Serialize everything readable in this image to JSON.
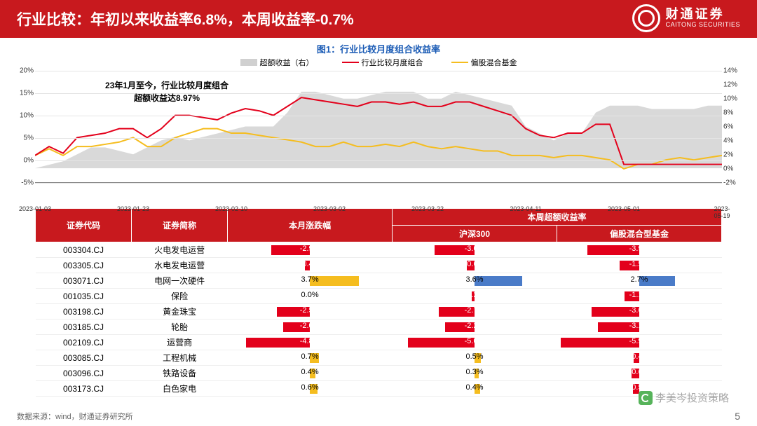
{
  "header": {
    "title": "行业比较：年初以来收益率6.8%，本周收益率-0.7%",
    "brand_main": "财通证券",
    "brand_sub": "CAITONG SECURITIES"
  },
  "chart": {
    "title": "图1：行业比较月度组合收益率",
    "legend_area": "超额收益（右）",
    "legend_line1": "行业比较月度组合",
    "legend_line2": "偏股混合基金",
    "annot_line1": "23年1月至今，行业比较月度组合",
    "annot_line2": "超额收益达8.97%",
    "colors": {
      "area": "#d0d0d0",
      "line1": "#e3001b",
      "line2": "#f5bd1f",
      "grid": "#e5e5e5"
    },
    "y_left": {
      "min": -5,
      "max": 20,
      "ticks": [
        -5,
        0,
        5,
        10,
        15,
        20
      ]
    },
    "y_right": {
      "min": -2,
      "max": 14,
      "ticks": [
        -2,
        0,
        2,
        4,
        6,
        8,
        10,
        12,
        14
      ]
    },
    "x_labels": [
      "2023-01-03",
      "2023-01-23",
      "2023-02-10",
      "2023-03-02",
      "2023-03-22",
      "2023-04-11",
      "2023-05-01",
      "2023-05-19"
    ],
    "series_area_r": [
      0,
      0.5,
      1,
      2,
      3,
      3,
      2.5,
      2,
      3,
      4,
      4.5,
      4,
      4.5,
      5,
      5.5,
      6,
      6,
      6,
      8,
      11,
      11,
      10.5,
      10,
      10,
      10.5,
      11,
      11,
      11,
      10,
      10,
      11,
      10.5,
      10,
      9.5,
      9,
      6,
      5,
      4,
      5,
      5,
      8,
      9,
      9,
      9,
      8.5,
      8.5,
      8.5,
      8.5,
      9,
      9
    ],
    "series_line1_l": [
      1,
      3,
      1.5,
      5,
      5.5,
      6,
      7,
      7,
      5,
      7,
      10,
      10,
      9.5,
      9,
      10.5,
      11.5,
      11,
      10,
      12,
      14,
      13.5,
      13,
      12.5,
      12,
      13,
      13,
      12.5,
      13,
      12,
      12,
      13,
      13,
      12,
      11,
      10,
      7,
      5.5,
      5,
      6,
      6,
      8,
      8,
      -1,
      -1,
      -1,
      -1,
      -1,
      -1,
      -1,
      -1
    ],
    "series_line2_l": [
      1,
      2.5,
      1,
      3,
      3,
      3.5,
      4,
      5,
      3,
      3,
      5,
      6,
      7,
      7,
      6,
      6,
      5.5,
      5,
      4.5,
      4,
      3,
      3,
      4,
      3,
      3,
      3.5,
      3,
      4,
      3,
      2.5,
      3,
      2.5,
      2,
      2,
      1,
      1,
      1,
      0.5,
      1,
      1,
      0.5,
      0,
      -2,
      -1,
      -1,
      0,
      0.5,
      0,
      0.5,
      1
    ]
  },
  "table": {
    "headers": {
      "code": "证券代码",
      "name": "证券简称",
      "month": "本月涨跌幅",
      "week_group": "本周超额收益率",
      "hs300": "沪深300",
      "fund": "偏股混合型基金"
    },
    "bar_range": 6,
    "pos_color": "#f5bd1f",
    "pos_color_alt": "#4a7bc8",
    "neg_color": "#e3001b",
    "rows": [
      {
        "code": "003304.CJ",
        "name": "火电发电运营",
        "month": -2.9,
        "hs300": -3.0,
        "fund": -3.9
      },
      {
        "code": "003305.CJ",
        "name": "水电发电运营",
        "month": -0.4,
        "hs300": -0.6,
        "fund": -1.5
      },
      {
        "code": "003071.CJ",
        "name": "电网一次硬件",
        "month": 3.7,
        "hs300": 3.6,
        "fund": 2.7,
        "alt": true
      },
      {
        "code": "001035.CJ",
        "name": "保险",
        "month": 0.0,
        "hs300": -0.2,
        "fund": -1.1
      },
      {
        "code": "003198.CJ",
        "name": "黄金珠宝",
        "month": -2.5,
        "hs300": -2.7,
        "fund": -3.6
      },
      {
        "code": "003185.CJ",
        "name": "轮胎",
        "month": -2.0,
        "hs300": -2.2,
        "fund": -3.1
      },
      {
        "code": "002109.CJ",
        "name": "运营商",
        "month": -4.8,
        "hs300": -5.0,
        "fund": -5.9
      },
      {
        "code": "003085.CJ",
        "name": "工程机械",
        "month": 0.7,
        "hs300": 0.5,
        "fund": -0.4
      },
      {
        "code": "003096.CJ",
        "name": "铁路设备",
        "month": 0.4,
        "hs300": 0.3,
        "fund": -0.6
      },
      {
        "code": "003173.CJ",
        "name": "白色家电",
        "month": 0.6,
        "hs300": 0.4,
        "fund": -0.5
      }
    ]
  },
  "footer": {
    "source": "数据来源：wind，财通证券研究所",
    "page": "5",
    "watermark": "李美岑投资策略"
  }
}
